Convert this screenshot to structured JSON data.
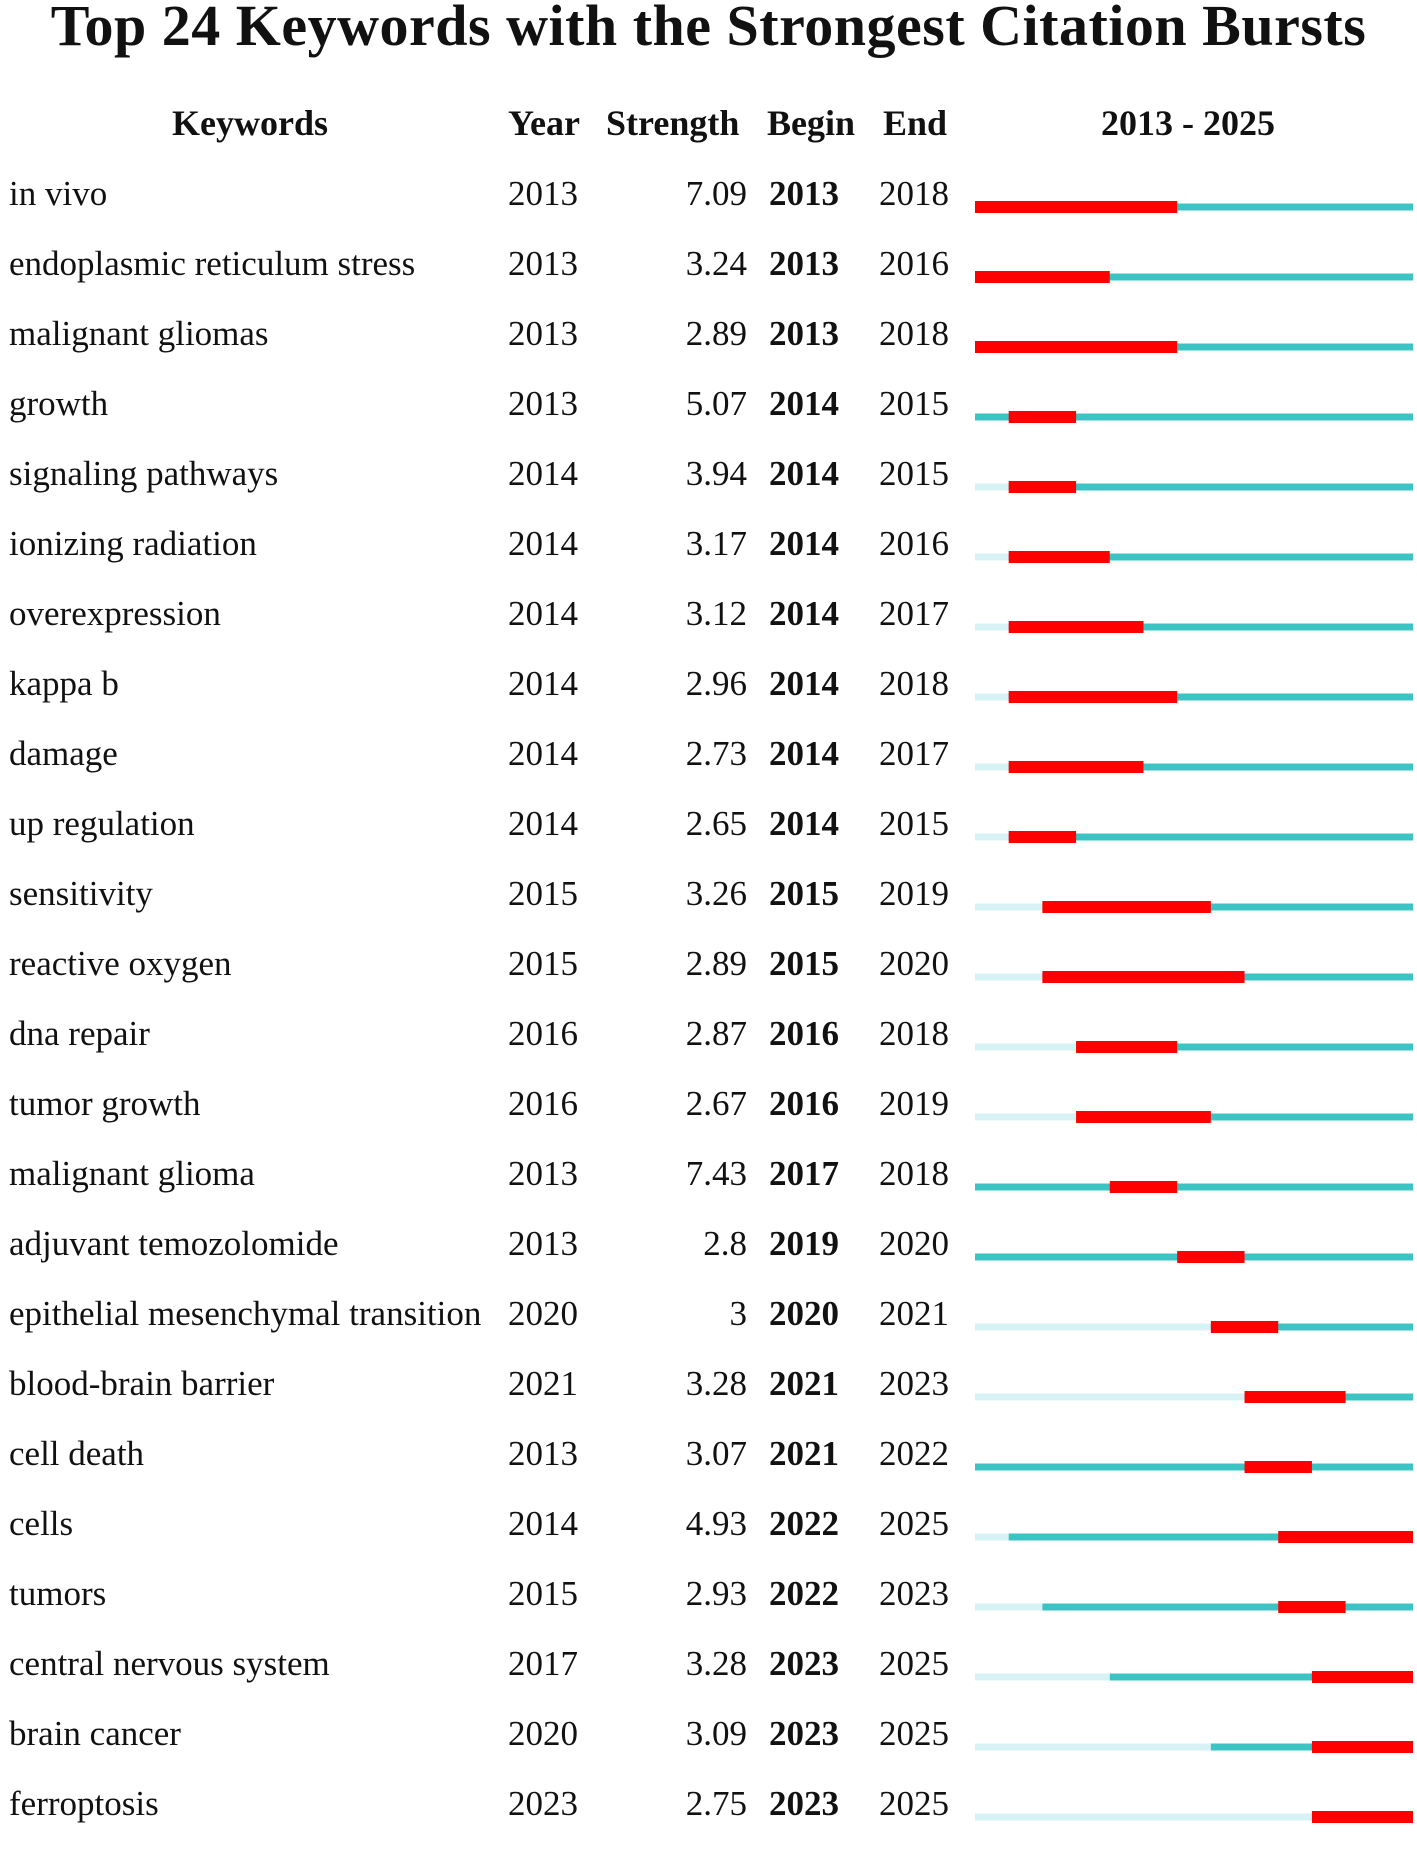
{
  "chart_data": {
    "type": "table",
    "title": "Top 24 Keywords with the Strongest Citation Bursts",
    "columns": {
      "keyword": "Keywords",
      "year": "Year",
      "strength": "Strength",
      "begin": "Begin",
      "end": "End",
      "timeline": "2013 - 2025"
    },
    "timeline_range": [
      2013,
      2025
    ],
    "colors": {
      "burst": "#ff0000",
      "active": "#3cc3c3",
      "inactive": "#d6f2f4"
    },
    "rows": [
      {
        "keyword": "in vivo",
        "year": "2013",
        "strength": "7.09",
        "begin": "2013",
        "end": "2018"
      },
      {
        "keyword": "endoplasmic reticulum stress",
        "year": "2013",
        "strength": "3.24",
        "begin": "2013",
        "end": "2016"
      },
      {
        "keyword": "malignant gliomas",
        "year": "2013",
        "strength": "2.89",
        "begin": "2013",
        "end": "2018"
      },
      {
        "keyword": "growth",
        "year": "2013",
        "strength": "5.07",
        "begin": "2014",
        "end": "2015"
      },
      {
        "keyword": "signaling pathways",
        "year": "2014",
        "strength": "3.94",
        "begin": "2014",
        "end": "2015"
      },
      {
        "keyword": "ionizing radiation",
        "year": "2014",
        "strength": "3.17",
        "begin": "2014",
        "end": "2016"
      },
      {
        "keyword": "overexpression",
        "year": "2014",
        "strength": "3.12",
        "begin": "2014",
        "end": "2017"
      },
      {
        "keyword": "kappa b",
        "year": "2014",
        "strength": "2.96",
        "begin": "2014",
        "end": "2018"
      },
      {
        "keyword": "damage",
        "year": "2014",
        "strength": "2.73",
        "begin": "2014",
        "end": "2017"
      },
      {
        "keyword": "up regulation",
        "year": "2014",
        "strength": "2.65",
        "begin": "2014",
        "end": "2015"
      },
      {
        "keyword": "sensitivity",
        "year": "2015",
        "strength": "3.26",
        "begin": "2015",
        "end": "2019"
      },
      {
        "keyword": "reactive oxygen",
        "year": "2015",
        "strength": "2.89",
        "begin": "2015",
        "end": "2020"
      },
      {
        "keyword": "dna repair",
        "year": "2016",
        "strength": "2.87",
        "begin": "2016",
        "end": "2018"
      },
      {
        "keyword": "tumor growth",
        "year": "2016",
        "strength": "2.67",
        "begin": "2016",
        "end": "2019"
      },
      {
        "keyword": "malignant glioma",
        "year": "2013",
        "strength": "7.43",
        "begin": "2017",
        "end": "2018"
      },
      {
        "keyword": "adjuvant temozolomide",
        "year": "2013",
        "strength": "2.8",
        "begin": "2019",
        "end": "2020"
      },
      {
        "keyword": "epithelial mesenchymal transition",
        "year": "2020",
        "strength": "3",
        "begin": "2020",
        "end": "2021"
      },
      {
        "keyword": "blood-brain barrier",
        "year": "2021",
        "strength": "3.28",
        "begin": "2021",
        "end": "2023"
      },
      {
        "keyword": "cell death",
        "year": "2013",
        "strength": "3.07",
        "begin": "2021",
        "end": "2022"
      },
      {
        "keyword": "cells",
        "year": "2014",
        "strength": "4.93",
        "begin": "2022",
        "end": "2025"
      },
      {
        "keyword": "tumors",
        "year": "2015",
        "strength": "2.93",
        "begin": "2022",
        "end": "2023"
      },
      {
        "keyword": "central nervous system",
        "year": "2017",
        "strength": "3.28",
        "begin": "2023",
        "end": "2025"
      },
      {
        "keyword": "brain cancer",
        "year": "2020",
        "strength": "3.09",
        "begin": "2023",
        "end": "2025"
      },
      {
        "keyword": "ferroptosis",
        "year": "2023",
        "strength": "2.75",
        "begin": "2023",
        "end": "2025"
      }
    ]
  }
}
